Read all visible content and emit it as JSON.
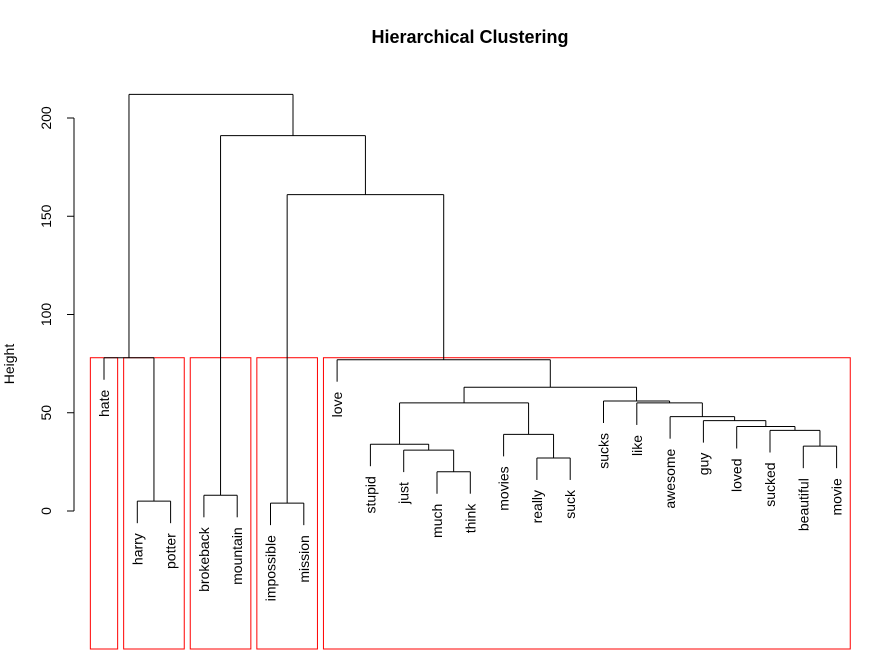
{
  "chart_data": {
    "type": "dendrogram",
    "title": "Hierarchical Clustering",
    "ylabel": "Height",
    "ylim": [
      0,
      220
    ],
    "yticks": [
      0,
      50,
      100,
      150,
      200
    ],
    "leaves": [
      "hate",
      "harry",
      "potter",
      "brokeback",
      "mountain",
      "impossible",
      "mission",
      "love",
      "stupid",
      "just",
      "much",
      "think",
      "movies",
      "really",
      "suck",
      "sucks",
      "like",
      "awesome",
      "guy",
      "loved",
      "sucked",
      "beautiful",
      "movie"
    ],
    "merges": [
      {
        "a": "much",
        "b": "think",
        "height": 20
      },
      {
        "a": "just",
        "b": "C1",
        "height": 31
      },
      {
        "a": "stupid",
        "b": "C2",
        "height": 34
      },
      {
        "a": "really",
        "b": "suck",
        "height": 27
      },
      {
        "a": "movies",
        "b": "C4",
        "height": 39
      },
      {
        "a": "C3",
        "b": "C5",
        "height": 55
      },
      {
        "a": "beautiful",
        "b": "movie",
        "height": 33
      },
      {
        "a": "sucked",
        "b": "C7",
        "height": 41
      },
      {
        "a": "loved",
        "b": "C8",
        "height": 43
      },
      {
        "a": "guy",
        "b": "C9",
        "height": 46
      },
      {
        "a": "awesome",
        "b": "C10",
        "height": 48
      },
      {
        "a": "like",
        "b": "C11",
        "height": 55
      },
      {
        "a": "sucks",
        "b": "C12",
        "height": 56
      },
      {
        "a": "C6",
        "b": "C13",
        "height": 63
      },
      {
        "a": "love",
        "b": "C14",
        "height": 77
      },
      {
        "a": "harry",
        "b": "potter",
        "height": 5
      },
      {
        "a": "hate",
        "b": "C16",
        "height": 78
      },
      {
        "a": "brokeback",
        "b": "mountain",
        "height": 8
      },
      {
        "a": "impossible",
        "b": "mission",
        "height": 4
      },
      {
        "a": "C19",
        "b": "C15",
        "height": 161
      },
      {
        "a": "C18",
        "b": "C20",
        "height": 191
      },
      {
        "a": "C17",
        "b": "C21",
        "height": 212
      }
    ],
    "cluster_boxes": [
      {
        "leaves": [
          "hate"
        ],
        "color": "#ff0000"
      },
      {
        "leaves": [
          "harry",
          "potter"
        ],
        "color": "#ff0000"
      },
      {
        "leaves": [
          "brokeback",
          "mountain"
        ],
        "color": "#ff0000"
      },
      {
        "leaves": [
          "impossible",
          "mission"
        ],
        "color": "#ff0000"
      },
      {
        "leaves": [
          "love",
          "stupid",
          "just",
          "much",
          "think",
          "movies",
          "really",
          "suck",
          "sucks",
          "like",
          "awesome",
          "guy",
          "loved",
          "sucked",
          "beautiful",
          "movie"
        ],
        "color": "#ff0000"
      }
    ],
    "box_top_height": 78,
    "line_color": "#000000"
  }
}
